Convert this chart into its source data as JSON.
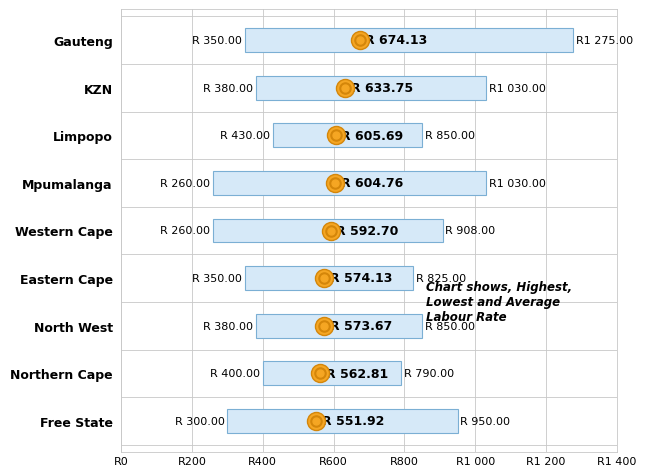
{
  "regions": [
    "Gauteng",
    "KZN",
    "Limpopo",
    "Mpumalanga",
    "Western Cape",
    "Eastern Cape",
    "North West",
    "Northern Cape",
    "Free State"
  ],
  "low": [
    350,
    380,
    430,
    260,
    260,
    350,
    380,
    400,
    300
  ],
  "high": [
    1275,
    1030,
    850,
    1030,
    908,
    825,
    850,
    790,
    950
  ],
  "avg": [
    674.13,
    633.75,
    605.69,
    604.76,
    592.7,
    574.13,
    573.67,
    562.81,
    551.92
  ],
  "low_labels": [
    "R 350.00",
    "R 380.00",
    "R 430.00",
    "R 260.00",
    "R 260.00",
    "R 350.00",
    "R 380.00",
    "R 400.00",
    "R 300.00"
  ],
  "high_labels": [
    "R1 275.00",
    "R1 030.00",
    "R 850.00",
    "R1 030.00",
    "R 908.00",
    "R 825.00",
    "R 850.00",
    "R 790.00",
    "R 950.00"
  ],
  "avg_labels": [
    "R 674.13",
    "R 633.75",
    "R 605.69",
    "R 604.76",
    "R 592.70",
    "R 574.13",
    "R 573.67",
    "R 562.81",
    "R 551.92"
  ],
  "xlim": [
    0,
    1400
  ],
  "xticks": [
    0,
    200,
    400,
    600,
    800,
    1000,
    1200,
    1400
  ],
  "xtick_labels": [
    "R0",
    "R200",
    "R400",
    "R600",
    "R800",
    "R1 000",
    "R1 200",
    "R1 400"
  ],
  "bar_fill": "#d6e9f8",
  "bar_edge": "#7bafd4",
  "bar_height": 0.5,
  "marker_outer_color": "#f5a623",
  "annotation_text": "Chart shows, Highest,\nLowest and Average\nLabour Rate",
  "bg_color": "#ffffff",
  "grid_color": "#c8c8c8",
  "label_fontsize": 8,
  "avg_label_fontsize": 9,
  "tick_fontsize": 8,
  "region_fontsize": 9
}
